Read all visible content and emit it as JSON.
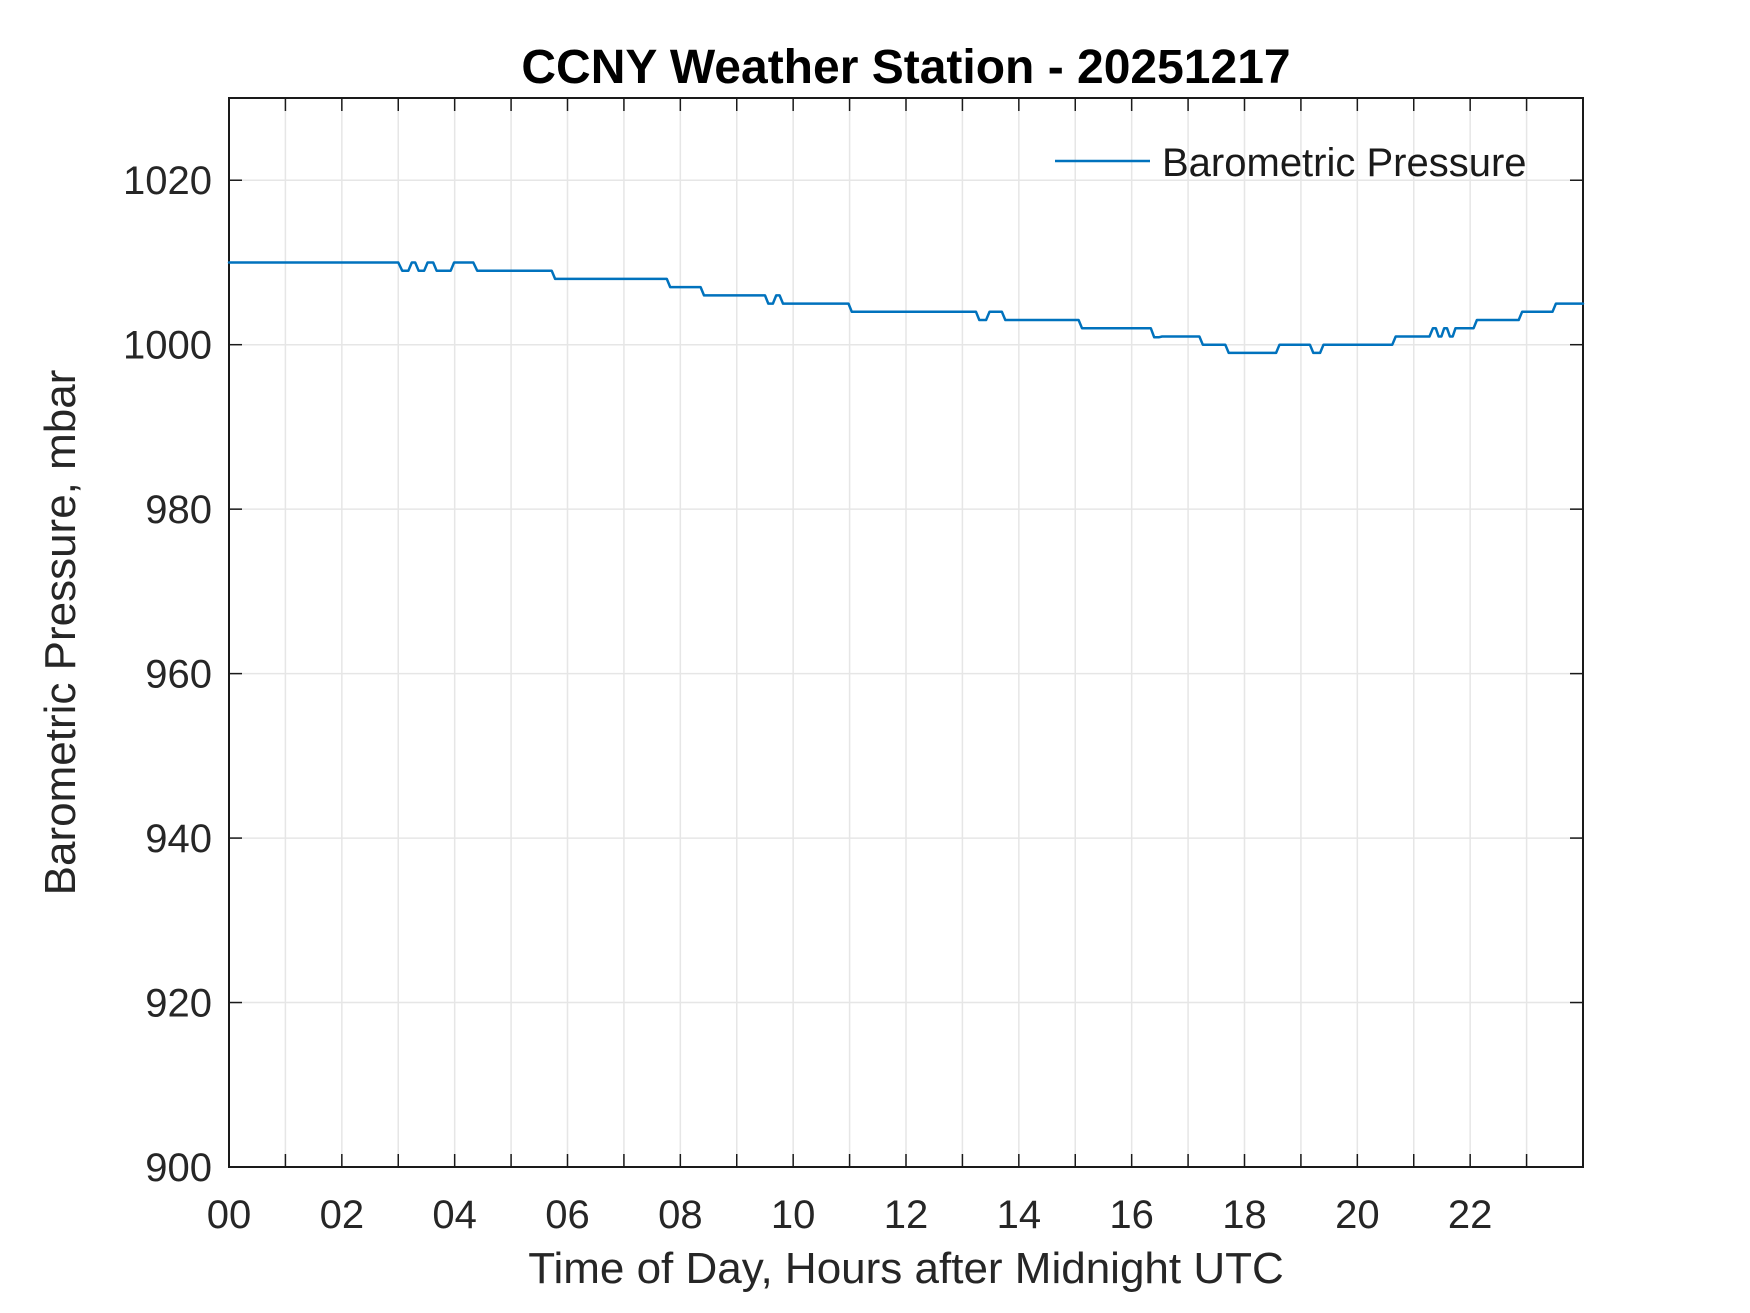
{
  "chart_data": {
    "type": "line",
    "title": "CCNY Weather Station - 20251217",
    "xlabel": "Time of Day, Hours after Midnight UTC",
    "ylabel": "Barometric Pressure, mbar",
    "legend_entries": [
      "Barometric Pressure"
    ],
    "legend_position": "top-right-inside",
    "grid": true,
    "xlim": [
      0,
      24
    ],
    "ylim": [
      900,
      1030
    ],
    "x_tick_hours": [
      0,
      2,
      4,
      6,
      8,
      10,
      12,
      14,
      16,
      18,
      20,
      22
    ],
    "x_tick_labels": [
      "00",
      "02",
      "04",
      "06",
      "08",
      "10",
      "12",
      "14",
      "16",
      "18",
      "20",
      "22"
    ],
    "x_minor_tick_step_hours": 1,
    "y_ticks": [
      900,
      920,
      940,
      960,
      980,
      1000,
      1020
    ],
    "y_tick_labels": [
      "900",
      "920",
      "940",
      "960",
      "980",
      "1000",
      "1020"
    ],
    "colors": {
      "line": "#0072BD",
      "grid": "#E6E6E6",
      "axis": "#1A1A1A",
      "tick_label": "#262626",
      "title": "#000000"
    },
    "series": [
      {
        "name": "Barometric Pressure",
        "units": "mbar",
        "x_units": "hours after midnight UTC",
        "points": [
          [
            0,
            1010
          ],
          [
            3.0,
            1010
          ],
          [
            3.07,
            1009
          ],
          [
            3.18,
            1009
          ],
          [
            3.24,
            1010
          ],
          [
            3.3,
            1010
          ],
          [
            3.36,
            1009
          ],
          [
            3.46,
            1009
          ],
          [
            3.52,
            1010
          ],
          [
            3.62,
            1010
          ],
          [
            3.68,
            1009
          ],
          [
            3.93,
            1009
          ],
          [
            3.99,
            1010
          ],
          [
            4.33,
            1010
          ],
          [
            4.4,
            1009
          ],
          [
            5.72,
            1009
          ],
          [
            5.78,
            1008
          ],
          [
            7.76,
            1008
          ],
          [
            7.82,
            1007
          ],
          [
            8.36,
            1007
          ],
          [
            8.42,
            1006
          ],
          [
            9.5,
            1006
          ],
          [
            9.56,
            1005
          ],
          [
            9.64,
            1005
          ],
          [
            9.7,
            1006
          ],
          [
            9.76,
            1006
          ],
          [
            9.82,
            1005
          ],
          [
            10.98,
            1005
          ],
          [
            11.04,
            1004
          ],
          [
            13.24,
            1004
          ],
          [
            13.3,
            1003
          ],
          [
            13.42,
            1003
          ],
          [
            13.48,
            1004
          ],
          [
            13.7,
            1004
          ],
          [
            13.76,
            1003
          ],
          [
            15.06,
            1003
          ],
          [
            15.12,
            1002
          ],
          [
            16.34,
            1002
          ],
          [
            16.4,
            1000.9
          ],
          [
            16.48,
            1000.9
          ],
          [
            16.54,
            1001
          ],
          [
            17.2,
            1001
          ],
          [
            17.26,
            1000
          ],
          [
            17.66,
            1000
          ],
          [
            17.72,
            999
          ],
          [
            18.56,
            999
          ],
          [
            18.62,
            1000
          ],
          [
            19.16,
            1000
          ],
          [
            19.22,
            999
          ],
          [
            19.34,
            999
          ],
          [
            19.4,
            1000
          ],
          [
            20.62,
            1000
          ],
          [
            20.68,
            1001
          ],
          [
            21.28,
            1001
          ],
          [
            21.34,
            1002
          ],
          [
            21.39,
            1002
          ],
          [
            21.44,
            1001
          ],
          [
            21.49,
            1001
          ],
          [
            21.54,
            1002
          ],
          [
            21.59,
            1002
          ],
          [
            21.64,
            1001
          ],
          [
            21.69,
            1001
          ],
          [
            21.74,
            1002
          ],
          [
            22.06,
            1002
          ],
          [
            22.12,
            1003
          ],
          [
            22.86,
            1003
          ],
          [
            22.92,
            1004
          ],
          [
            23.46,
            1004
          ],
          [
            23.52,
            1005
          ],
          [
            24,
            1005
          ]
        ]
      }
    ]
  }
}
